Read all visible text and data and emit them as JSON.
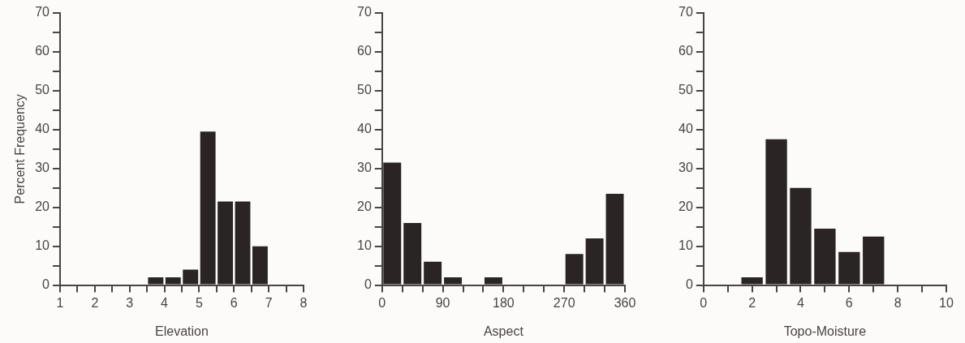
{
  "chart_data": [
    {
      "type": "histogram",
      "xlabel": "Elevation",
      "ylabel": "Percent Frequency",
      "color": "#2a2424",
      "bins": [
        3.5,
        4,
        4.5,
        5,
        5.5,
        6,
        6.5,
        7
      ],
      "values": [
        2,
        2,
        4,
        39.5,
        21.5,
        21.5,
        10
      ],
      "xlim": [
        1,
        8
      ],
      "xticks": [
        1,
        {
          "value": 1.5,
          "label": null
        },
        2,
        {
          "value": 2.5,
          "label": null
        },
        3,
        {
          "value": 3.5,
          "label": null
        },
        4,
        {
          "value": 4.5,
          "label": null
        },
        5,
        {
          "value": 5.5,
          "label": null
        },
        6,
        {
          "value": 6.5,
          "label": null
        },
        7,
        {
          "value": 7.5,
          "label": null
        },
        8
      ],
      "ylim": [
        0,
        70
      ],
      "yticks": [
        0,
        {
          "value": 5,
          "label": null
        },
        10,
        {
          "value": 15,
          "label": null
        },
        20,
        {
          "value": 25,
          "label": null
        },
        30,
        {
          "value": 35,
          "label": null
        },
        40,
        {
          "value": 45,
          "label": null
        },
        50,
        {
          "value": 55,
          "label": null
        },
        60,
        {
          "value": 65,
          "label": null
        },
        70
      ]
    },
    {
      "type": "histogram",
      "xlabel": "Aspect",
      "color": "#2a2424",
      "bins": [
        0,
        30,
        60,
        90,
        120,
        150,
        180,
        210,
        240,
        270,
        300,
        330,
        360
      ],
      "values": [
        31.5,
        16,
        6,
        2,
        0,
        2,
        0,
        0,
        0,
        8,
        12,
        23.5
      ],
      "xlim": [
        0,
        360
      ],
      "xticks": [
        0,
        {
          "value": 30,
          "label": null
        },
        {
          "value": 60,
          "label": null
        },
        90,
        {
          "value": 120,
          "label": null
        },
        {
          "value": 150,
          "label": null
        },
        180,
        {
          "value": 210,
          "label": null
        },
        {
          "value": 240,
          "label": null
        },
        270,
        {
          "value": 300,
          "label": null
        },
        {
          "value": 330,
          "label": null
        },
        360
      ],
      "ylim": [
        0,
        70
      ],
      "yticks": [
        0,
        {
          "value": 5,
          "label": null
        },
        10,
        {
          "value": 15,
          "label": null
        },
        20,
        {
          "value": 25,
          "label": null
        },
        30,
        {
          "value": 35,
          "label": null
        },
        40,
        {
          "value": 45,
          "label": null
        },
        50,
        {
          "value": 55,
          "label": null
        },
        60,
        {
          "value": 65,
          "label": null
        },
        70
      ]
    },
    {
      "type": "histogram",
      "xlabel": "Topo-Moisture",
      "color": "#2a2424",
      "bins": [
        1.5,
        2.5,
        3.5,
        4.5,
        5.5,
        6.5,
        7.5
      ],
      "values": [
        2,
        37.5,
        25,
        14.5,
        8.5,
        12.5
      ],
      "xlim": [
        0,
        10
      ],
      "xticks": [
        0,
        {
          "value": 1,
          "label": null
        },
        2,
        {
          "value": 3,
          "label": null
        },
        4,
        {
          "value": 5,
          "label": null
        },
        6,
        {
          "value": 7,
          "label": null
        },
        8,
        {
          "value": 9,
          "label": null
        },
        10
      ],
      "ylim": [
        0,
        70
      ],
      "yticks": [
        0,
        {
          "value": 5,
          "label": null
        },
        10,
        {
          "value": 15,
          "label": null
        },
        20,
        {
          "value": 25,
          "label": null
        },
        30,
        {
          "value": 35,
          "label": null
        },
        40,
        {
          "value": 45,
          "label": null
        },
        50,
        {
          "value": 55,
          "label": null
        },
        60,
        {
          "value": 65,
          "label": null
        },
        70
      ]
    }
  ]
}
